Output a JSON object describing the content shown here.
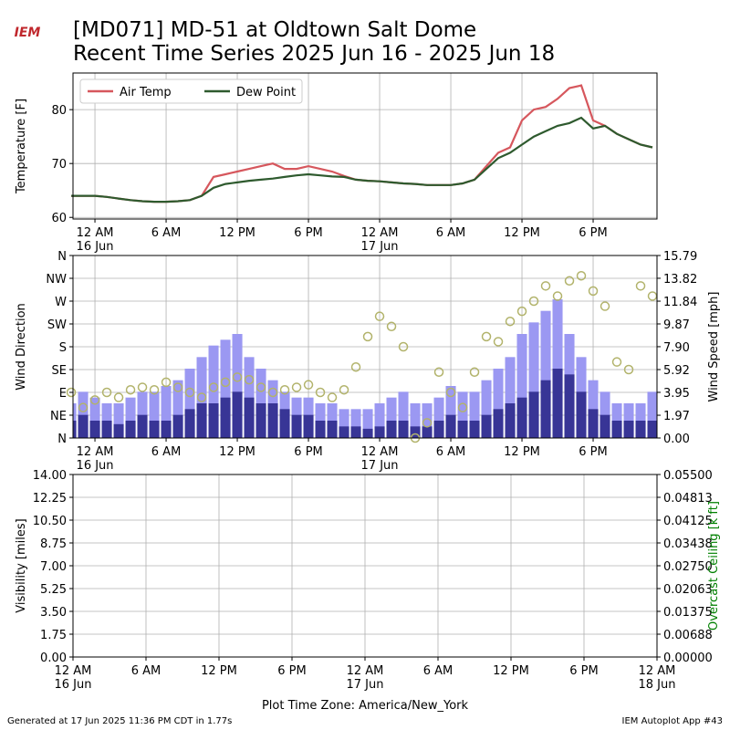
{
  "logo": "IEM",
  "footer": {
    "left": "Generated at 17 Jun 2025 11:36 PM CDT in 1.77s",
    "right": "IEM Autoplot App #43"
  },
  "chart_data": [
    {
      "type": "line",
      "title": "[MD071] MD-51 at Oldtown Salt Dome",
      "subtitle": "Recent Time Series 2025 Jun 16 - 2025 Jun 18",
      "ylabel": "Temperature [F]",
      "x": [
        "2025-06-15T22:00",
        "2025-06-15T23:00",
        "2025-06-16T00:00",
        "2025-06-16T01:00",
        "2025-06-16T02:00",
        "2025-06-16T03:00",
        "2025-06-16T04:00",
        "2025-06-16T05:00",
        "2025-06-16T06:00",
        "2025-06-16T07:00",
        "2025-06-16T08:00",
        "2025-06-16T09:00",
        "2025-06-16T10:00",
        "2025-06-16T11:00",
        "2025-06-16T12:00",
        "2025-06-16T13:00",
        "2025-06-16T14:00",
        "2025-06-16T15:00",
        "2025-06-16T16:00",
        "2025-06-16T17:00",
        "2025-06-16T18:00",
        "2025-06-16T19:00",
        "2025-06-16T20:00",
        "2025-06-16T21:00",
        "2025-06-16T22:00",
        "2025-06-16T23:00",
        "2025-06-17T00:00",
        "2025-06-17T01:00",
        "2025-06-17T02:00",
        "2025-06-17T03:00",
        "2025-06-17T04:00",
        "2025-06-17T05:00",
        "2025-06-17T06:00",
        "2025-06-17T07:00",
        "2025-06-17T08:00",
        "2025-06-17T09:00",
        "2025-06-17T10:00",
        "2025-06-17T11:00",
        "2025-06-17T12:00",
        "2025-06-17T13:00",
        "2025-06-17T14:00",
        "2025-06-17T15:00",
        "2025-06-17T16:00",
        "2025-06-17T17:00",
        "2025-06-17T18:00",
        "2025-06-17T19:00",
        "2025-06-17T20:00",
        "2025-06-17T21:00",
        "2025-06-17T22:00",
        "2025-06-17T23:00"
      ],
      "series": [
        {
          "name": "Air Temp",
          "color": "#d6575d",
          "values": [
            64,
            64,
            64,
            63.8,
            63.5,
            63.2,
            63,
            62.9,
            62.9,
            63,
            63.2,
            64,
            67.5,
            68,
            68.5,
            69,
            69.5,
            70,
            69,
            69,
            69.5,
            69,
            68.5,
            67.7,
            67,
            66.8,
            66.7,
            66.5,
            66.3,
            66.2,
            66,
            66,
            66,
            66.3,
            67,
            69.5,
            72,
            73,
            78,
            80,
            80.5,
            82,
            84,
            84.5,
            78,
            77,
            75.5,
            74.5,
            73.5,
            73
          ]
        },
        {
          "name": "Dew Point",
          "color": "#2e5a2e",
          "values": [
            64,
            64,
            64,
            63.8,
            63.5,
            63.2,
            63,
            62.9,
            62.9,
            63,
            63.2,
            64,
            65.5,
            66.2,
            66.5,
            66.8,
            67,
            67.2,
            67.5,
            67.8,
            68,
            67.8,
            67.6,
            67.5,
            67,
            66.8,
            66.7,
            66.5,
            66.3,
            66.2,
            66,
            66,
            66,
            66.3,
            67,
            69,
            71,
            72,
            73.5,
            75,
            76,
            77,
            77.5,
            78.5,
            76.5,
            77,
            75.5,
            74.5,
            73.5,
            73
          ]
        }
      ],
      "xlim": [
        "2025-06-15T22:09",
        "2025-06-17T23:23"
      ],
      "xticks": [
        {
          "value": "2025-06-16T00:00",
          "label": "12 AM\n16 Jun"
        },
        {
          "value": "2025-06-16T06:00",
          "label": "6 AM"
        },
        {
          "value": "2025-06-16T12:00",
          "label": "12 PM"
        },
        {
          "value": "2025-06-16T18:00",
          "label": "6 PM"
        },
        {
          "value": "2025-06-17T00:00",
          "label": "12 AM\n17 Jun"
        },
        {
          "value": "2025-06-17T06:00",
          "label": "6 AM"
        },
        {
          "value": "2025-06-17T12:00",
          "label": "12 PM"
        },
        {
          "value": "2025-06-17T18:00",
          "label": "6 PM"
        }
      ],
      "ylim": [
        59.7,
        86.8
      ],
      "yticks": [
        60,
        70,
        80
      ],
      "grid": true,
      "legend": "upper left"
    },
    {
      "type": "combo",
      "ylabel": "Wind Direction",
      "y2label": "Wind Speed [mph]",
      "x": [
        "2025-06-15T22:00",
        "2025-06-15T23:00",
        "2025-06-16T00:00",
        "2025-06-16T01:00",
        "2025-06-16T02:00",
        "2025-06-16T03:00",
        "2025-06-16T04:00",
        "2025-06-16T05:00",
        "2025-06-16T06:00",
        "2025-06-16T07:00",
        "2025-06-16T08:00",
        "2025-06-16T09:00",
        "2025-06-16T10:00",
        "2025-06-16T11:00",
        "2025-06-16T12:00",
        "2025-06-16T13:00",
        "2025-06-16T14:00",
        "2025-06-16T15:00",
        "2025-06-16T16:00",
        "2025-06-16T17:00",
        "2025-06-16T18:00",
        "2025-06-16T19:00",
        "2025-06-16T20:00",
        "2025-06-16T21:00",
        "2025-06-16T22:00",
        "2025-06-16T23:00",
        "2025-06-17T00:00",
        "2025-06-17T01:00",
        "2025-06-17T02:00",
        "2025-06-17T03:00",
        "2025-06-17T04:00",
        "2025-06-17T05:00",
        "2025-06-17T06:00",
        "2025-06-17T07:00",
        "2025-06-17T08:00",
        "2025-06-17T09:00",
        "2025-06-17T10:00",
        "2025-06-17T11:00",
        "2025-06-17T12:00",
        "2025-06-17T13:00",
        "2025-06-17T14:00",
        "2025-06-17T15:00",
        "2025-06-17T16:00",
        "2025-06-17T17:00",
        "2025-06-17T18:00",
        "2025-06-17T19:00",
        "2025-06-17T20:00",
        "2025-06-17T21:00",
        "2025-06-17T22:00",
        "2025-06-17T23:00"
      ],
      "series": [
        {
          "type": "bar",
          "axis": "y2",
          "color": "#9b98f2",
          "values": [
            3,
            4,
            3.5,
            3,
            3,
            3.5,
            4,
            4,
            4.5,
            5,
            6,
            7,
            8,
            8.5,
            9,
            7,
            6,
            5,
            4,
            3.5,
            3.5,
            3,
            3,
            2.5,
            2.5,
            2.5,
            3,
            3.5,
            4,
            3,
            3,
            3.5,
            4.5,
            4,
            4,
            5,
            6,
            7,
            9,
            10,
            11,
            12,
            9,
            7,
            5,
            4,
            3,
            3,
            3,
            4
          ]
        },
        {
          "type": "bar",
          "axis": "y2",
          "color": "#383596",
          "values": [
            1.5,
            2,
            1.5,
            1.5,
            1.2,
            1.5,
            2,
            1.5,
            1.5,
            2,
            2.5,
            3,
            3,
            3.5,
            4,
            3.5,
            3,
            3,
            2.5,
            2,
            2,
            1.5,
            1.5,
            1,
            1,
            0.8,
            1,
            1.5,
            1.5,
            1,
            1,
            1.5,
            2,
            1.5,
            1.5,
            2,
            2.5,
            3,
            3.5,
            4,
            5,
            6,
            5.5,
            4,
            2.5,
            2,
            1.5,
            1.5,
            1.5,
            1.5
          ]
        },
        {
          "type": "scatter",
          "color": "#b2b36b",
          "values": [
            90,
            60,
            75,
            90,
            80,
            95,
            100,
            95,
            110,
            100,
            90,
            80,
            100,
            110,
            120,
            115,
            100,
            90,
            95,
            100,
            105,
            90,
            80,
            95,
            140,
            200,
            240,
            220,
            180,
            0,
            30,
            130,
            90,
            60,
            130,
            200,
            190,
            230,
            250,
            270,
            300,
            280,
            310,
            320,
            290,
            260,
            150,
            135,
            300,
            280
          ]
        }
      ],
      "xlim": [
        "2025-06-15T22:09",
        "2025-06-17T23:23"
      ],
      "xticks": [
        {
          "value": "2025-06-16T00:00",
          "label": "12 AM\n16 Jun"
        },
        {
          "value": "2025-06-16T06:00",
          "label": "6 AM"
        },
        {
          "value": "2025-06-16T12:00",
          "label": "12 PM"
        },
        {
          "value": "2025-06-16T18:00",
          "label": "6 PM"
        },
        {
          "value": "2025-06-17T00:00",
          "label": "12 AM\n17 Jun"
        },
        {
          "value": "2025-06-17T06:00",
          "label": "6 AM"
        },
        {
          "value": "2025-06-17T12:00",
          "label": "12 PM"
        },
        {
          "value": "2025-06-17T18:00",
          "label": "6 PM"
        }
      ],
      "ylim": [
        0,
        360
      ],
      "yticks": [
        {
          "value": 0,
          "label": "N"
        },
        {
          "value": 45,
          "label": "NE"
        },
        {
          "value": 90,
          "label": "E"
        },
        {
          "value": 135,
          "label": "SE"
        },
        {
          "value": 180,
          "label": "S"
        },
        {
          "value": 225,
          "label": "SW"
        },
        {
          "value": 270,
          "label": "W"
        },
        {
          "value": 315,
          "label": "NW"
        },
        {
          "value": 360,
          "label": "N"
        }
      ],
      "y2lim": [
        0,
        15.79
      ],
      "y2ticks": [
        {
          "value": 0,
          "label": "0.00"
        },
        1.97,
        3.95,
        5.92,
        {
          "value": 7.9,
          "label": "7.90"
        },
        9.87,
        11.84,
        13.82,
        15.79
      ],
      "grid": true
    },
    {
      "type": "line",
      "ylabel": "Visibility [miles]",
      "y2label": "Overcast Ceiling [k ft]",
      "y2label_color": "#008000",
      "xlabel": "Plot Time Zone: America/New_York",
      "x": [],
      "series": [],
      "xlim": [
        "2025-06-16T00:00",
        "2025-06-18T00:00"
      ],
      "xticks": [
        {
          "value": "2025-06-16T00:00",
          "label": "12 AM\n16 Jun"
        },
        {
          "value": "2025-06-16T06:00",
          "label": "6 AM"
        },
        {
          "value": "2025-06-16T12:00",
          "label": "12 PM"
        },
        {
          "value": "2025-06-16T18:00",
          "label": "6 PM"
        },
        {
          "value": "2025-06-17T00:00",
          "label": "12 AM\n17 Jun"
        },
        {
          "value": "2025-06-17T06:00",
          "label": "6 AM"
        },
        {
          "value": "2025-06-17T12:00",
          "label": "12 PM"
        },
        {
          "value": "2025-06-17T18:00",
          "label": "6 PM"
        },
        {
          "value": "2025-06-18T00:00",
          "label": "12 AM\n18 Jun"
        }
      ],
      "ylim": [
        0,
        14
      ],
      "yticks": [
        {
          "value": 0,
          "label": "0.00"
        },
        1.75,
        {
          "value": 3.5,
          "label": "3.50"
        },
        5.25,
        {
          "value": 7,
          "label": "7.00"
        },
        8.75,
        {
          "value": 10.5,
          "label": "10.50"
        },
        12.25,
        {
          "value": 14,
          "label": "14.00"
        }
      ],
      "y2lim": [
        0,
        0.055
      ],
      "y2ticks": [
        {
          "value": 0,
          "label": "0.00000"
        },
        {
          "value": 0.006875,
          "label": "0.00688"
        },
        0.01375,
        {
          "value": 0.020625,
          "label": "0.02063"
        },
        {
          "value": 0.0275,
          "label": "0.02750"
        },
        {
          "value": 0.034375,
          "label": "0.03438"
        },
        0.04125,
        {
          "value": 0.048125,
          "label": "0.04813"
        },
        {
          "value": 0.055,
          "label": "0.05500"
        }
      ],
      "grid": true
    }
  ]
}
